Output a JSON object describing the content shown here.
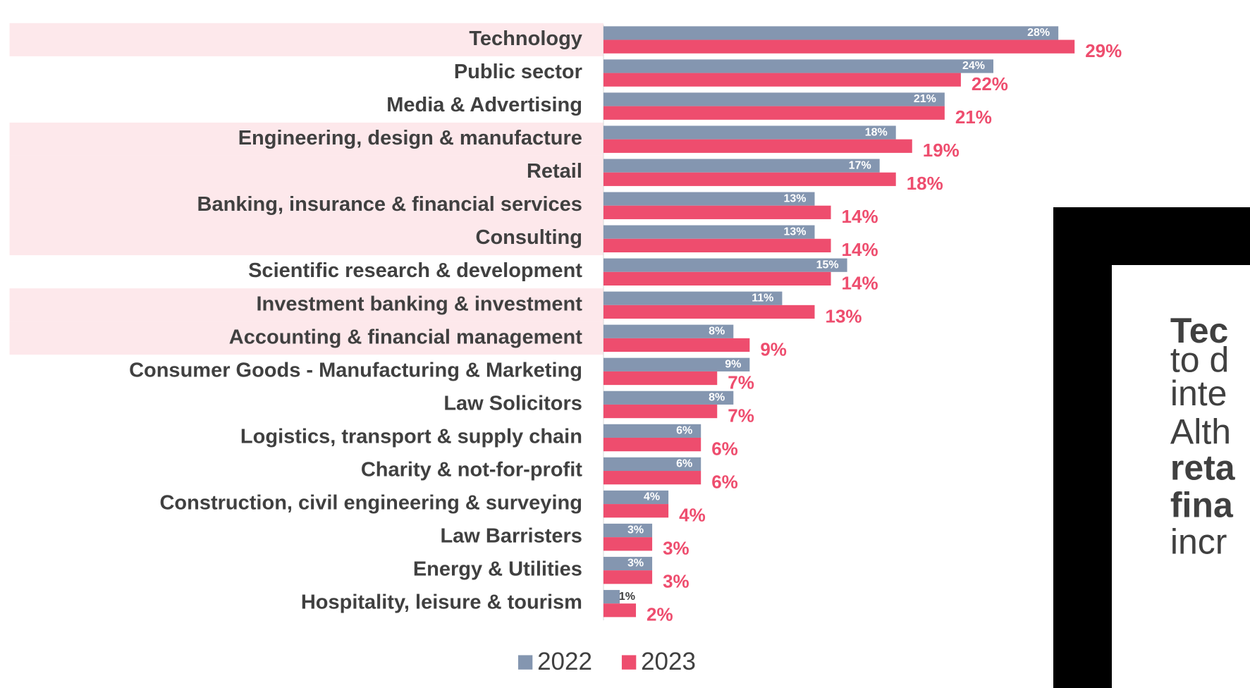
{
  "chart_data": {
    "type": "bar",
    "orientation": "horizontal",
    "categories": [
      "Technology",
      "Public sector",
      "Media & Advertising",
      "Engineering, design & manufacture",
      "Retail",
      "Banking, insurance & financial services",
      "Consulting",
      "Scientific research & development",
      "Investment banking & investment",
      "Accounting & financial management",
      "Consumer Goods - Manufacturing & Marketing",
      "Law Solicitors",
      "Logistics, transport & supply chain",
      "Charity & not-for-profit",
      "Construction, civil engineering & surveying",
      "Law Barristers",
      "Energy & Utilities",
      "Hospitality, leisure & tourism"
    ],
    "highlighted": [
      true,
      false,
      false,
      true,
      true,
      true,
      true,
      false,
      true,
      true,
      false,
      false,
      false,
      false,
      false,
      false,
      false,
      false
    ],
    "highlight_color": "#fde8eb",
    "series": [
      {
        "name": "2022",
        "color": "#8496b0",
        "values": [
          28,
          24,
          21,
          18,
          17,
          13,
          13,
          15,
          11,
          8,
          9,
          8,
          6,
          6,
          4,
          3,
          3,
          1
        ],
        "value_labels": [
          "28%",
          "24%",
          "21%",
          "18%",
          "17%",
          "13%",
          "13%",
          "15%",
          "11%",
          "8%",
          "9%",
          "8%",
          "6%",
          "6%",
          "4%",
          "3%",
          "3%",
          "1%"
        ]
      },
      {
        "name": "2023",
        "color": "#ee4d6e",
        "values": [
          29,
          22,
          21,
          19,
          18,
          14,
          14,
          14,
          13,
          9,
          7,
          7,
          6,
          6,
          4,
          3,
          3,
          2
        ],
        "value_labels": [
          "29%",
          "22%",
          "21%",
          "19%",
          "18%",
          "14%",
          "14%",
          "14%",
          "13%",
          "9%",
          "7%",
          "7%",
          "6%",
          "6%",
          "4%",
          "3%",
          "3%",
          "2%"
        ]
      }
    ],
    "legend": "bottom"
  },
  "callout": {
    "lines": [
      {
        "text": "Tec",
        "bold": true
      },
      {
        "text": "to d",
        "bold": false
      },
      {
        "text": "inte",
        "bold": false
      },
      {
        "text": "Alth",
        "bold": false
      },
      {
        "text": "reta",
        "bold": true
      },
      {
        "text": "fina",
        "bold": true
      },
      {
        "text": "incr",
        "bold": false
      }
    ]
  }
}
